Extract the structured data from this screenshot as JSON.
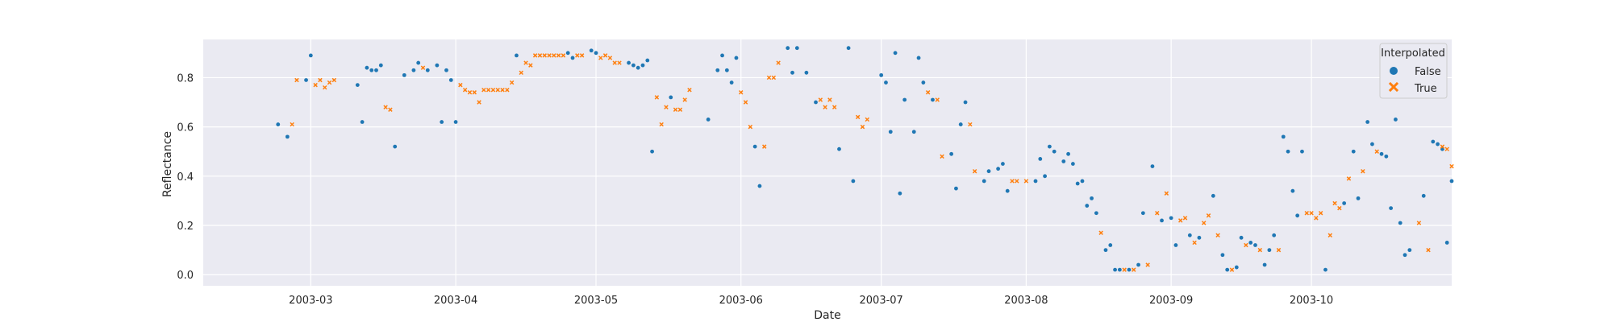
{
  "chart_data": {
    "type": "scatter",
    "title": "",
    "xlabel": "Date",
    "ylabel": "Reflectance",
    "xlim": [
      "2003-02-06",
      "2003-10-31"
    ],
    "ylim": [
      -0.045,
      0.955
    ],
    "x_ticks": [
      "2003-03",
      "2003-04",
      "2003-05",
      "2003-06",
      "2003-07",
      "2003-08",
      "2003-09",
      "2003-10"
    ],
    "y_ticks": [
      "0.0",
      "0.2",
      "0.4",
      "0.6",
      "0.8"
    ],
    "y_tick_values": [
      0.0,
      0.2,
      0.4,
      0.6,
      0.8
    ],
    "grid": true,
    "background": "#eaeaf2",
    "legend": {
      "title": "Interpolated",
      "placement": "top-right",
      "entries": [
        {
          "label": "False",
          "marker": "circle",
          "color": "#1f77b4"
        },
        {
          "label": "True",
          "marker": "x",
          "color": "#ff7f0e"
        }
      ]
    },
    "series": [
      {
        "name": "False",
        "color": "#1f77b4",
        "marker": "circle",
        "points": [
          [
            "2003-02-22",
            0.61
          ],
          [
            "2003-02-24",
            0.56
          ],
          [
            "2003-02-28",
            0.79
          ],
          [
            "2003-03-01",
            0.89
          ],
          [
            "2003-03-11",
            0.77
          ],
          [
            "2003-03-12",
            0.62
          ],
          [
            "2003-03-13",
            0.84
          ],
          [
            "2003-03-14",
            0.83
          ],
          [
            "2003-03-15",
            0.83
          ],
          [
            "2003-03-16",
            0.85
          ],
          [
            "2003-03-19",
            0.52
          ],
          [
            "2003-03-21",
            0.81
          ],
          [
            "2003-03-23",
            0.83
          ],
          [
            "2003-03-24",
            0.86
          ],
          [
            "2003-03-26",
            0.83
          ],
          [
            "2003-03-28",
            0.85
          ],
          [
            "2003-03-29",
            0.62
          ],
          [
            "2003-03-30",
            0.83
          ],
          [
            "2003-03-31",
            0.79
          ],
          [
            "2003-04-01",
            0.62
          ],
          [
            "2003-04-14",
            0.89
          ],
          [
            "2003-04-25",
            0.9
          ],
          [
            "2003-04-26",
            0.88
          ],
          [
            "2003-04-30",
            0.91
          ],
          [
            "2003-05-01",
            0.9
          ],
          [
            "2003-05-08",
            0.86
          ],
          [
            "2003-05-09",
            0.85
          ],
          [
            "2003-05-10",
            0.84
          ],
          [
            "2003-05-11",
            0.85
          ],
          [
            "2003-05-12",
            0.87
          ],
          [
            "2003-05-13",
            0.5
          ],
          [
            "2003-05-17",
            0.72
          ],
          [
            "2003-05-25",
            0.63
          ],
          [
            "2003-05-27",
            0.83
          ],
          [
            "2003-05-28",
            0.89
          ],
          [
            "2003-05-29",
            0.83
          ],
          [
            "2003-05-30",
            0.78
          ],
          [
            "2003-05-31",
            0.88
          ],
          [
            "2003-06-04",
            0.52
          ],
          [
            "2003-06-05",
            0.36
          ],
          [
            "2003-06-11",
            0.92
          ],
          [
            "2003-06-12",
            0.82
          ],
          [
            "2003-06-13",
            0.92
          ],
          [
            "2003-06-15",
            0.82
          ],
          [
            "2003-06-17",
            0.7
          ],
          [
            "2003-06-22",
            0.51
          ],
          [
            "2003-06-24",
            0.92
          ],
          [
            "2003-06-25",
            0.38
          ],
          [
            "2003-07-01",
            0.81
          ],
          [
            "2003-07-02",
            0.78
          ],
          [
            "2003-07-03",
            0.58
          ],
          [
            "2003-07-04",
            0.9
          ],
          [
            "2003-07-05",
            0.33
          ],
          [
            "2003-07-06",
            0.71
          ],
          [
            "2003-07-08",
            0.58
          ],
          [
            "2003-07-09",
            0.88
          ],
          [
            "2003-07-10",
            0.78
          ],
          [
            "2003-07-12",
            0.71
          ],
          [
            "2003-07-16",
            0.49
          ],
          [
            "2003-07-17",
            0.35
          ],
          [
            "2003-07-18",
            0.61
          ],
          [
            "2003-07-19",
            0.7
          ],
          [
            "2003-07-23",
            0.38
          ],
          [
            "2003-07-24",
            0.42
          ],
          [
            "2003-07-26",
            0.43
          ],
          [
            "2003-07-27",
            0.45
          ],
          [
            "2003-07-28",
            0.34
          ],
          [
            "2003-08-03",
            0.38
          ],
          [
            "2003-08-04",
            0.47
          ],
          [
            "2003-08-05",
            0.4
          ],
          [
            "2003-08-06",
            0.52
          ],
          [
            "2003-08-07",
            0.5
          ],
          [
            "2003-08-09",
            0.46
          ],
          [
            "2003-08-10",
            0.49
          ],
          [
            "2003-08-11",
            0.45
          ],
          [
            "2003-08-12",
            0.37
          ],
          [
            "2003-08-13",
            0.38
          ],
          [
            "2003-08-14",
            0.28
          ],
          [
            "2003-08-15",
            0.31
          ],
          [
            "2003-08-16",
            0.25
          ],
          [
            "2003-08-18",
            0.1
          ],
          [
            "2003-08-19",
            0.12
          ],
          [
            "2003-08-20",
            0.02
          ],
          [
            "2003-08-21",
            0.02
          ],
          [
            "2003-08-23",
            0.02
          ],
          [
            "2003-08-25",
            0.04
          ],
          [
            "2003-08-26",
            0.25
          ],
          [
            "2003-08-28",
            0.44
          ],
          [
            "2003-08-30",
            0.22
          ],
          [
            "2003-09-01",
            0.23
          ],
          [
            "2003-09-02",
            0.12
          ],
          [
            "2003-09-05",
            0.16
          ],
          [
            "2003-09-07",
            0.15
          ],
          [
            "2003-09-10",
            0.32
          ],
          [
            "2003-09-12",
            0.08
          ],
          [
            "2003-09-13",
            0.02
          ],
          [
            "2003-09-15",
            0.03
          ],
          [
            "2003-09-16",
            0.15
          ],
          [
            "2003-09-18",
            0.13
          ],
          [
            "2003-09-19",
            0.12
          ],
          [
            "2003-09-21",
            0.04
          ],
          [
            "2003-09-22",
            0.1
          ],
          [
            "2003-09-23",
            0.16
          ],
          [
            "2003-09-25",
            0.56
          ],
          [
            "2003-09-26",
            0.5
          ],
          [
            "2003-09-27",
            0.34
          ],
          [
            "2003-09-28",
            0.24
          ],
          [
            "2003-09-29",
            0.5
          ],
          [
            "2003-10-04",
            0.02
          ],
          [
            "2003-10-08",
            0.29
          ],
          [
            "2003-10-10",
            0.5
          ],
          [
            "2003-10-11",
            0.31
          ],
          [
            "2003-10-13",
            0.62
          ],
          [
            "2003-10-14",
            0.53
          ],
          [
            "2003-10-16",
            0.49
          ],
          [
            "2003-10-17",
            0.48
          ],
          [
            "2003-10-18",
            0.27
          ],
          [
            "2003-10-19",
            0.63
          ],
          [
            "2003-10-20",
            0.21
          ],
          [
            "2003-10-21",
            0.08
          ],
          [
            "2003-10-22",
            0.1
          ],
          [
            "2003-10-23",
            0.73
          ],
          [
            "2003-10-25",
            0.32
          ],
          [
            "2003-10-27",
            0.54
          ],
          [
            "2003-10-28",
            0.53
          ],
          [
            "2003-10-29",
            0.51
          ],
          [
            "2003-10-30",
            0.13
          ],
          [
            "2003-10-31",
            0.38
          ]
        ]
      },
      {
        "name": "True",
        "color": "#ff7f0e",
        "marker": "x",
        "points": [
          [
            "2003-02-25",
            0.61
          ],
          [
            "2003-02-26",
            0.79
          ],
          [
            "2003-03-02",
            0.77
          ],
          [
            "2003-03-03",
            0.79
          ],
          [
            "2003-03-04",
            0.76
          ],
          [
            "2003-03-05",
            0.78
          ],
          [
            "2003-03-06",
            0.79
          ],
          [
            "2003-03-17",
            0.68
          ],
          [
            "2003-03-18",
            0.67
          ],
          [
            "2003-03-25",
            0.84
          ],
          [
            "2003-04-02",
            0.77
          ],
          [
            "2003-04-03",
            0.75
          ],
          [
            "2003-04-04",
            0.74
          ],
          [
            "2003-04-05",
            0.74
          ],
          [
            "2003-04-06",
            0.7
          ],
          [
            "2003-04-07",
            0.75
          ],
          [
            "2003-04-08",
            0.75
          ],
          [
            "2003-04-09",
            0.75
          ],
          [
            "2003-04-10",
            0.75
          ],
          [
            "2003-04-11",
            0.75
          ],
          [
            "2003-04-12",
            0.75
          ],
          [
            "2003-04-13",
            0.78
          ],
          [
            "2003-04-15",
            0.82
          ],
          [
            "2003-04-16",
            0.86
          ],
          [
            "2003-04-17",
            0.85
          ],
          [
            "2003-04-18",
            0.89
          ],
          [
            "2003-04-19",
            0.89
          ],
          [
            "2003-04-20",
            0.89
          ],
          [
            "2003-04-21",
            0.89
          ],
          [
            "2003-04-22",
            0.89
          ],
          [
            "2003-04-23",
            0.89
          ],
          [
            "2003-04-24",
            0.89
          ],
          [
            "2003-04-27",
            0.89
          ],
          [
            "2003-04-28",
            0.89
          ],
          [
            "2003-05-02",
            0.88
          ],
          [
            "2003-05-03",
            0.89
          ],
          [
            "2003-05-04",
            0.88
          ],
          [
            "2003-05-05",
            0.86
          ],
          [
            "2003-05-06",
            0.86
          ],
          [
            "2003-05-14",
            0.72
          ],
          [
            "2003-05-15",
            0.61
          ],
          [
            "2003-05-16",
            0.68
          ],
          [
            "2003-05-18",
            0.67
          ],
          [
            "2003-05-19",
            0.67
          ],
          [
            "2003-05-20",
            0.71
          ],
          [
            "2003-05-21",
            0.75
          ],
          [
            "2003-06-01",
            0.74
          ],
          [
            "2003-06-02",
            0.7
          ],
          [
            "2003-06-03",
            0.6
          ],
          [
            "2003-06-06",
            0.52
          ],
          [
            "2003-06-07",
            0.8
          ],
          [
            "2003-06-08",
            0.8
          ],
          [
            "2003-06-09",
            0.86
          ],
          [
            "2003-06-18",
            0.71
          ],
          [
            "2003-06-19",
            0.68
          ],
          [
            "2003-06-20",
            0.71
          ],
          [
            "2003-06-21",
            0.68
          ],
          [
            "2003-06-26",
            0.64
          ],
          [
            "2003-06-27",
            0.6
          ],
          [
            "2003-06-28",
            0.63
          ],
          [
            "2003-07-11",
            0.74
          ],
          [
            "2003-07-13",
            0.71
          ],
          [
            "2003-07-14",
            0.48
          ],
          [
            "2003-07-20",
            0.61
          ],
          [
            "2003-07-21",
            0.42
          ],
          [
            "2003-07-29",
            0.38
          ],
          [
            "2003-07-30",
            0.38
          ],
          [
            "2003-08-01",
            0.38
          ],
          [
            "2003-08-17",
            0.17
          ],
          [
            "2003-08-22",
            0.02
          ],
          [
            "2003-08-24",
            0.02
          ],
          [
            "2003-08-27",
            0.04
          ],
          [
            "2003-08-29",
            0.25
          ],
          [
            "2003-08-31",
            0.33
          ],
          [
            "2003-09-03",
            0.22
          ],
          [
            "2003-09-04",
            0.23
          ],
          [
            "2003-09-06",
            0.13
          ],
          [
            "2003-09-08",
            0.21
          ],
          [
            "2003-09-09",
            0.24
          ],
          [
            "2003-09-11",
            0.16
          ],
          [
            "2003-09-14",
            0.02
          ],
          [
            "2003-09-17",
            0.12
          ],
          [
            "2003-09-20",
            0.1
          ],
          [
            "2003-09-24",
            0.1
          ],
          [
            "2003-09-30",
            0.25
          ],
          [
            "2003-10-01",
            0.25
          ],
          [
            "2003-10-02",
            0.23
          ],
          [
            "2003-10-03",
            0.25
          ],
          [
            "2003-10-05",
            0.16
          ],
          [
            "2003-10-06",
            0.29
          ],
          [
            "2003-10-07",
            0.27
          ],
          [
            "2003-10-09",
            0.39
          ],
          [
            "2003-10-12",
            0.42
          ],
          [
            "2003-10-15",
            0.5
          ],
          [
            "2003-10-24",
            0.21
          ],
          [
            "2003-10-26",
            0.1
          ],
          [
            "2003-10-29",
            0.52
          ],
          [
            "2003-10-30",
            0.51
          ],
          [
            "2003-10-31",
            0.44
          ]
        ]
      }
    ]
  }
}
